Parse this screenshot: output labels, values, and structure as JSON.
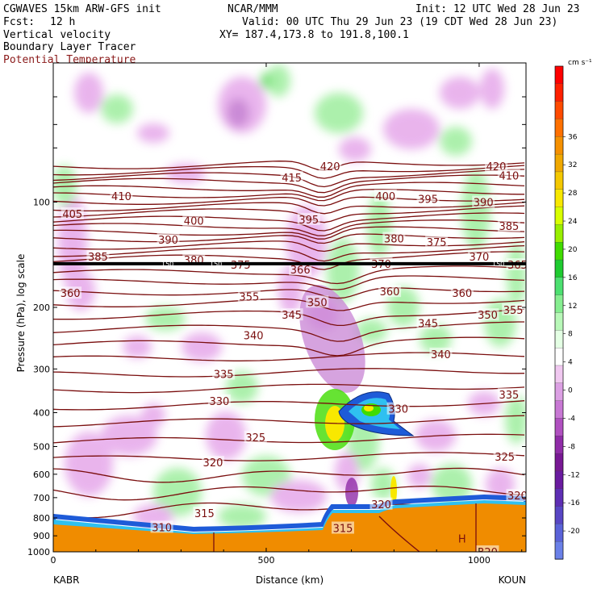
{
  "header": {
    "model": "CGWAVES 15km ARW-GFS init",
    "org": "NCAR/MMM",
    "init": "Init: 12 UTC Wed 28 Jun 23",
    "fcst_label": "Fcst:",
    "fcst_value": "12 h",
    "valid": "Valid: 00 UTC Thu 29 Jun 23 (19 CDT Wed 28 Jun 23)",
    "field1": "Vertical velocity",
    "field2": "Boundary Layer Tracer",
    "field3": "Potential Temperature",
    "xy": "XY= 187.4,173.8 to 191.8,100.1"
  },
  "colors": {
    "theta": "#7a0e0e",
    "terrain": "#f08c00",
    "tracer_blue": "#1e5bd8",
    "tropopause": "#000000"
  },
  "chart_data": {
    "type": "heatmap",
    "title": "",
    "xlabel": "Distance (km)",
    "ylabel": "Pressure (hPa), log scale",
    "xlim": [
      0,
      1110
    ],
    "ylim": [
      1000,
      40
    ],
    "y_scale": "log",
    "x_ticks": [
      "0",
      "500",
      "1000"
    ],
    "y_ticks": [
      "100",
      "200",
      "300",
      "400",
      "500",
      "600",
      "700",
      "800",
      "900",
      "1000"
    ],
    "x_endpoints": {
      "left": "KABR",
      "right": "KOUN"
    },
    "theta_contours": [
      {
        "label": "410",
        "x": 160,
        "p": 96
      },
      {
        "label": "405",
        "x": 45,
        "p": 108
      },
      {
        "label": "400",
        "x": 330,
        "p": 113
      },
      {
        "label": "390",
        "x": 270,
        "p": 128
      },
      {
        "label": "385",
        "x": 105,
        "p": 143
      },
      {
        "label": "380",
        "x": 330,
        "p": 146
      },
      {
        "label": "375",
        "x": 440,
        "p": 151
      },
      {
        "label": "366",
        "x": 580,
        "p": 156
      },
      {
        "label": "360",
        "x": 40,
        "p": 182
      },
      {
        "label": "355",
        "x": 460,
        "p": 186
      },
      {
        "label": "350",
        "x": 620,
        "p": 193
      },
      {
        "label": "345",
        "x": 560,
        "p": 210
      },
      {
        "label": "340",
        "x": 470,
        "p": 240
      },
      {
        "label": "335",
        "x": 400,
        "p": 310
      },
      {
        "label": "330",
        "x": 390,
        "p": 370
      },
      {
        "label": "325",
        "x": 475,
        "p": 470
      },
      {
        "label": "320",
        "x": 375,
        "p": 555
      },
      {
        "label": "315",
        "x": 355,
        "p": 775
      },
      {
        "label": "310",
        "x": 255,
        "p": 850
      },
      {
        "label": "415",
        "x": 560,
        "p": 85
      },
      {
        "label": "420",
        "x": 650,
        "p": 79
      },
      {
        "label": "400",
        "x": 780,
        "p": 96
      },
      {
        "label": "395",
        "x": 600,
        "p": 112
      },
      {
        "label": "395",
        "x": 880,
        "p": 98
      },
      {
        "label": "390",
        "x": 1010,
        "p": 100
      },
      {
        "label": "370",
        "x": 770,
        "p": 150
      },
      {
        "label": "380",
        "x": 800,
        "p": 127
      },
      {
        "label": "375",
        "x": 900,
        "p": 130
      },
      {
        "label": "360",
        "x": 790,
        "p": 180
      },
      {
        "label": "345",
        "x": 880,
        "p": 222
      },
      {
        "label": "340",
        "x": 910,
        "p": 272
      },
      {
        "label": "330",
        "x": 810,
        "p": 390
      },
      {
        "label": "320",
        "x": 770,
        "p": 730
      },
      {
        "label": "315",
        "x": 680,
        "p": 855
      },
      {
        "label": "420",
        "x": 1040,
        "p": 79
      },
      {
        "label": "410",
        "x": 1070,
        "p": 84
      },
      {
        "label": "385",
        "x": 1070,
        "p": 117
      },
      {
        "label": "370",
        "x": 1000,
        "p": 143
      },
      {
        "label": "365",
        "x": 1090,
        "p": 151
      },
      {
        "label": "360",
        "x": 960,
        "p": 182
      },
      {
        "label": "350",
        "x": 1020,
        "p": 210
      },
      {
        "label": "355",
        "x": 1080,
        "p": 203
      },
      {
        "label": "335",
        "x": 1070,
        "p": 355
      },
      {
        "label": "325",
        "x": 1060,
        "p": 535
      },
      {
        "label": "320",
        "x": 1090,
        "p": 690
      },
      {
        "label": "320",
        "x": 1020,
        "p": 1000
      }
    ],
    "tropopause": {
      "p": 150,
      "labels": [
        "150",
        "150",
        "150"
      ]
    },
    "marker": {
      "label": "H",
      "x": 960,
      "p": 920
    },
    "colorbar": {
      "unit": "cm s⁻¹",
      "ticks": [
        "36",
        "32",
        "28",
        "24",
        "20",
        "16",
        "12",
        "8",
        "4",
        "0",
        "-4",
        "-8",
        "-12",
        "-16",
        "-20"
      ],
      "colors": [
        "#ff0000",
        "#ff2000",
        "#ff4a00",
        "#ff7000",
        "#f59000",
        "#f0a800",
        "#f4c800",
        "#f8e800",
        "#d8ff00",
        "#98ef00",
        "#40dc00",
        "#1ecb30",
        "#4ce070",
        "#86ee90",
        "#b8f8b8",
        "#e4ffe4",
        "#ffffff",
        "#f0c8f0",
        "#dca0e4",
        "#c878d4",
        "#b050c0",
        "#902ca8",
        "#781894",
        "#6a1ba0",
        "#5e2eb4",
        "#5846c4",
        "#5a62d8",
        "#6a80e8"
      ]
    }
  }
}
